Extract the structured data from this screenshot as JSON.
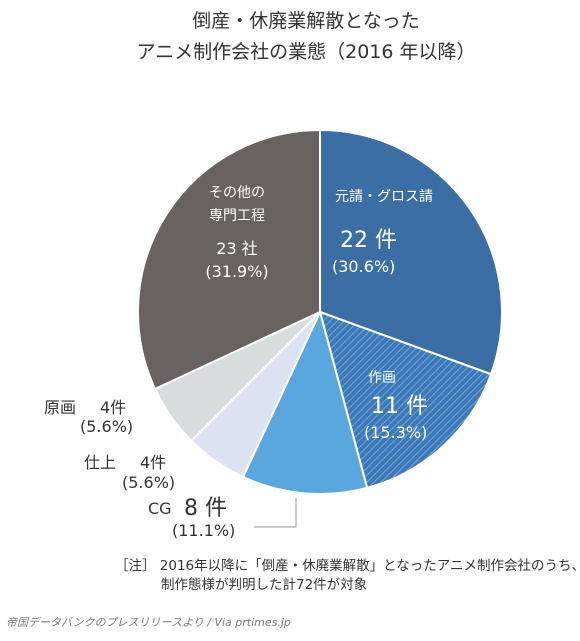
{
  "title_lines": [
    "倒産・休廃業解散となった",
    "アニメ制作会社の業態（2016 年以降）"
  ],
  "chart_data": {
    "type": "pie",
    "title": "倒産・休廃業解散となったアニメ制作会社の業態（2016 年以降）",
    "total": 72,
    "slices": [
      {
        "name": "元請・グロス請",
        "value": 22,
        "percent": 30.6,
        "value_label": "22 件",
        "percent_label": "(30.6%)",
        "color": "#3a6ea5",
        "hatched": false
      },
      {
        "name": "作画",
        "value": 11,
        "percent": 15.3,
        "value_label": "11 件",
        "percent_label": "(15.3%)",
        "color": "#3d79b8",
        "hatched": true
      },
      {
        "name": "CG",
        "value": 8,
        "percent": 11.1,
        "value_label": "8 件",
        "percent_label": "(11.1%)",
        "color": "#5aa7e0",
        "hatched": false
      },
      {
        "name": "仕上",
        "value": 4,
        "percent": 5.6,
        "value_label": "4件",
        "percent_label": "(5.6%)",
        "color": "#dde2f2",
        "hatched": false
      },
      {
        "name": "原画",
        "value": 4,
        "percent": 5.6,
        "value_label": "4件",
        "percent_label": "(5.6%)",
        "color": "#d9dcdc",
        "hatched": false
      },
      {
        "name": "その他の専門工程",
        "name_lines": [
          "その他の",
          "専門工程"
        ],
        "value": 23,
        "percent": 31.9,
        "value_label": "23 社",
        "percent_label": "(31.9%)",
        "color": "#686260",
        "hatched": false
      }
    ]
  },
  "note": {
    "lines": [
      "［注］ 2016年以降に「倒産・休廃業解散」となったアニメ制作会社のうち、",
      "制作態様が判明した計72件が対象"
    ]
  },
  "source": "帝国データバンクのプレスリリースより / Via prtimes.jp"
}
